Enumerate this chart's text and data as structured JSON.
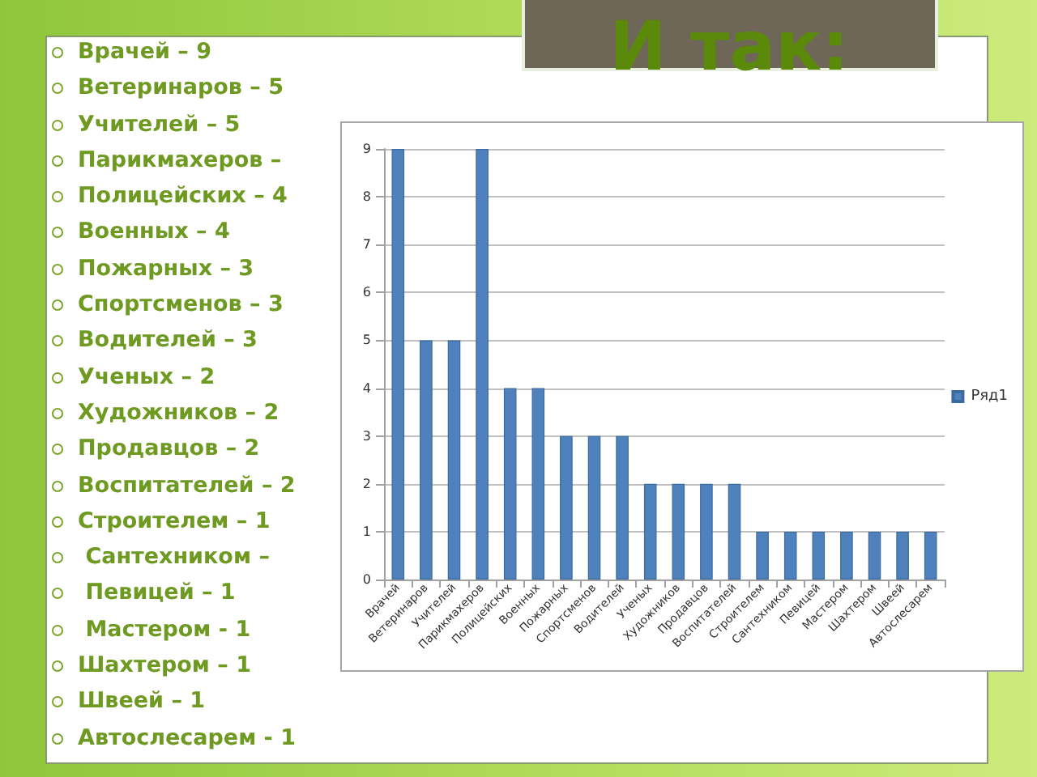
{
  "chart_data": {
    "type": "bar",
    "title": "И так:",
    "categories": [
      "Врачей",
      "Ветеринаров",
      "Учителей",
      "Парикмахеров",
      "Полицейских",
      "Военных",
      "Пожарных",
      "Спортсменов",
      "Водителей",
      "Ученых",
      "Художников",
      "Продавцов",
      "Воспитателей",
      "Строителем",
      "Сантехником",
      "Певицей",
      "Мастером",
      "Шахтером",
      "Швеей",
      "Автослесарем"
    ],
    "series": [
      {
        "name": "Ряд1",
        "color": "#4f81bd",
        "values": [
          9,
          5,
          5,
          9,
          4,
          4,
          3,
          3,
          3,
          2,
          2,
          2,
          2,
          1,
          1,
          1,
          1,
          1,
          1,
          1
        ]
      }
    ],
    "ylim": [
      0,
      9
    ],
    "yticks": [
      0,
      1,
      2,
      3,
      4,
      5,
      6,
      7,
      8,
      9
    ],
    "grid": "y",
    "legend": "right",
    "annotations": [
      "Врачей – 9",
      "Ветеринаров – 5",
      "Учителей – 5",
      "Парикмахеров –",
      "Полицейских – 4",
      "Военных – 4",
      "Пожарных – 3",
      "Спортсменов – 3",
      "Водителей – 3",
      "Ученых – 2",
      "Художников – 2",
      "Продавцов – 2",
      "Воспитателей – 2",
      "Строителем – 1",
      " Сантехником –",
      " Певицей – 1",
      " Мастером - 1",
      "Шахтером – 1",
      "Швеей – 1",
      "Автослесарем - 1"
    ]
  }
}
